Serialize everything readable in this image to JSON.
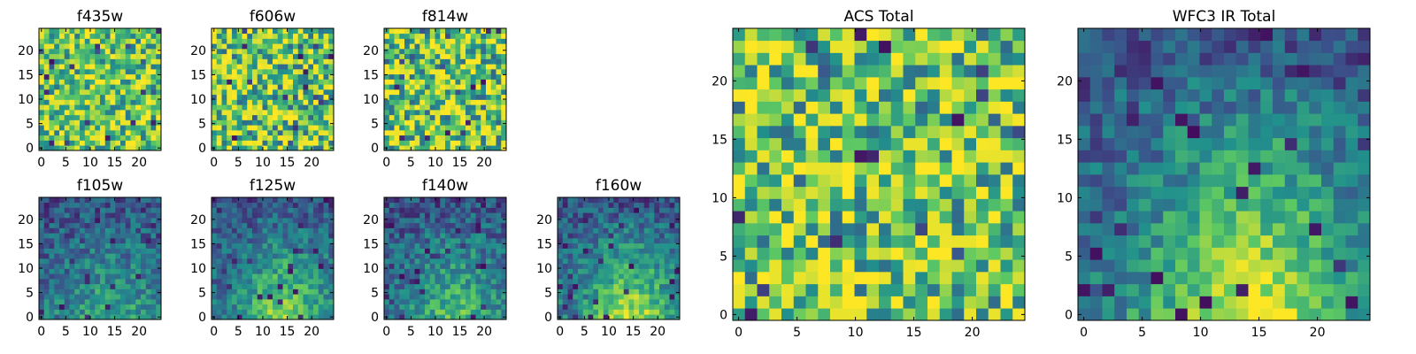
{
  "colormap": "viridis",
  "colormap_stops": [
    "#440154",
    "#3b528b",
    "#21918c",
    "#5ec962",
    "#fde725"
  ],
  "chart_data": [
    {
      "type": "heatmap",
      "id": "f435w",
      "title": "f435w",
      "grid_size": [
        24,
        24
      ],
      "xlim": [
        0,
        24
      ],
      "ylim": [
        0,
        24
      ],
      "xticks": [
        0,
        5,
        10,
        15,
        20
      ],
      "yticks": [
        0,
        5,
        10,
        15,
        20
      ],
      "pattern": "noise",
      "contrast": 0.55,
      "seed": 11
    },
    {
      "type": "heatmap",
      "id": "f606w",
      "title": "f606w",
      "grid_size": [
        24,
        24
      ],
      "xlim": [
        0,
        24
      ],
      "ylim": [
        0,
        24
      ],
      "xticks": [
        0,
        5,
        10,
        15,
        20
      ],
      "yticks": [
        0,
        5,
        10,
        15,
        20
      ],
      "pattern": "noise",
      "contrast": 0.65,
      "seed": 23
    },
    {
      "type": "heatmap",
      "id": "f814w",
      "title": "f814w",
      "grid_size": [
        24,
        24
      ],
      "xlim": [
        0,
        24
      ],
      "ylim": [
        0,
        24
      ],
      "xticks": [
        0,
        5,
        10,
        15,
        20
      ],
      "yticks": [
        0,
        5,
        10,
        15,
        20
      ],
      "pattern": "noise",
      "contrast": 0.65,
      "seed": 37
    },
    {
      "type": "heatmap",
      "id": "f105w",
      "title": "f105w",
      "grid_size": [
        24,
        24
      ],
      "xlim": [
        0,
        24
      ],
      "ylim": [
        0,
        24
      ],
      "xticks": [
        0,
        5,
        10,
        15,
        20
      ],
      "yticks": [
        0,
        5,
        10,
        15,
        20
      ],
      "pattern": "gradient",
      "contrast": 0.3,
      "seed": 41
    },
    {
      "type": "heatmap",
      "id": "f125w",
      "title": "f125w",
      "grid_size": [
        24,
        24
      ],
      "xlim": [
        0,
        24
      ],
      "ylim": [
        0,
        24
      ],
      "xticks": [
        0,
        5,
        10,
        15,
        20
      ],
      "yticks": [
        0,
        5,
        10,
        15,
        20
      ],
      "pattern": "gradient",
      "contrast": 0.6,
      "seed": 53
    },
    {
      "type": "heatmap",
      "id": "f140w",
      "title": "f140w",
      "grid_size": [
        24,
        24
      ],
      "xlim": [
        0,
        24
      ],
      "ylim": [
        0,
        24
      ],
      "xticks": [
        0,
        5,
        10,
        15,
        20
      ],
      "yticks": [
        0,
        5,
        10,
        15,
        20
      ],
      "pattern": "gradient",
      "contrast": 0.45,
      "seed": 67
    },
    {
      "type": "heatmap",
      "id": "f160w",
      "title": "f160w",
      "grid_size": [
        24,
        24
      ],
      "xlim": [
        0,
        24
      ],
      "ylim": [
        0,
        24
      ],
      "xticks": [
        0,
        5,
        10,
        15,
        20
      ],
      "yticks": [
        0,
        5,
        10,
        15,
        20
      ],
      "pattern": "gradient",
      "contrast": 0.7,
      "seed": 79
    },
    {
      "type": "heatmap",
      "id": "acs_total",
      "title": "ACS Total",
      "grid_size": [
        24,
        24
      ],
      "xlim": [
        0,
        24
      ],
      "ylim": [
        0,
        24
      ],
      "xticks": [
        0,
        5,
        10,
        15,
        20
      ],
      "yticks": [
        0,
        5,
        10,
        15,
        20
      ],
      "pattern": "noise",
      "contrast": 0.65,
      "seed": 97
    },
    {
      "type": "heatmap",
      "id": "wfc3_ir_total",
      "title": "WFC3 IR Total",
      "grid_size": [
        24,
        24
      ],
      "xlim": [
        0,
        24
      ],
      "ylim": [
        0,
        24
      ],
      "xticks": [
        0,
        5,
        10,
        15,
        20
      ],
      "yticks": [
        0,
        5,
        10,
        15,
        20
      ],
      "pattern": "gradient",
      "contrast": 0.8,
      "seed": 113
    }
  ]
}
